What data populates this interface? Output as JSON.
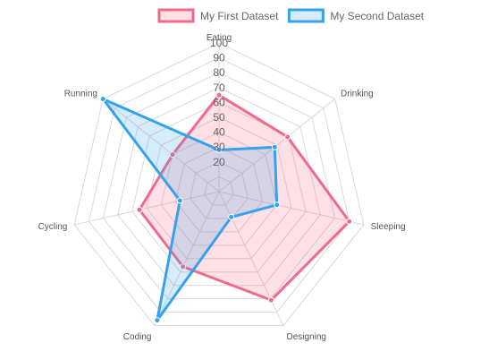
{
  "chart_data": {
    "type": "radar",
    "title": "",
    "labels": [
      "Eating",
      "Drinking",
      "Sleeping",
      "Designing",
      "Coding",
      "Cycling",
      "Running"
    ],
    "r_range": [
      0,
      100
    ],
    "r_ticks": [
      20,
      30,
      40,
      50,
      60,
      70,
      80,
      90,
      100
    ],
    "grid": true,
    "legend_position": "top",
    "series": [
      {
        "name": "My First Dataset",
        "values": [
          65,
          59,
          90,
          81,
          56,
          55,
          40
        ],
        "border_color": "#ee6b8b",
        "fill_color": "#ff6384"
      },
      {
        "name": "My Second Dataset",
        "values": [
          28,
          48,
          40,
          19,
          96,
          27,
          100
        ],
        "border_color": "#36a2eb",
        "fill_color": "#36a2eb"
      }
    ]
  }
}
